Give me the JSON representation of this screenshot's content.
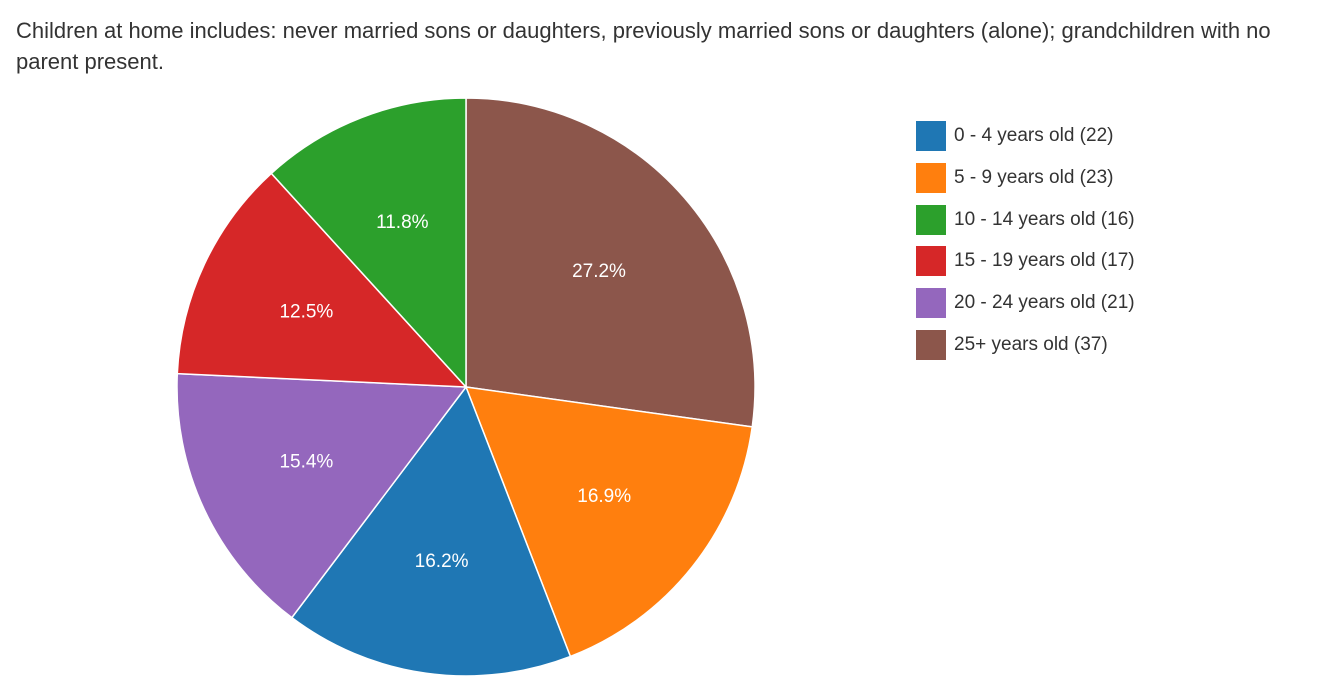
{
  "chart_data": {
    "type": "pie",
    "title": "Children at home includes: never married sons or daughters, previously married sons or daughters (alone); grandchildren with no parent present.",
    "legend_position": "right",
    "start_angle_deg": 0,
    "direction": "clockwise",
    "slices": [
      {
        "label": "25+ years old (37)",
        "value": 37,
        "percent_label": "27.2%",
        "color": "#8c564b"
      },
      {
        "label": "5 - 9 years old (23)",
        "value": 23,
        "percent_label": "16.9%",
        "color": "#ff7f0e"
      },
      {
        "label": "0 - 4 years old (22)",
        "value": 22,
        "percent_label": "16.2%",
        "color": "#1f77b4"
      },
      {
        "label": "20 - 24 years old (21)",
        "value": 21,
        "percent_label": "15.4%",
        "color": "#9467bd"
      },
      {
        "label": "15 - 19 years old (17)",
        "value": 17,
        "percent_label": "12.5%",
        "color": "#d62728"
      },
      {
        "label": "10 - 14 years old (16)",
        "value": 16,
        "percent_label": "11.8%",
        "color": "#2ca02c"
      }
    ],
    "legend": [
      {
        "label": "0 - 4 years old (22)",
        "color": "#1f77b4"
      },
      {
        "label": "5 - 9 years old (23)",
        "color": "#ff7f0e"
      },
      {
        "label": "10 - 14 years old (16)",
        "color": "#2ca02c"
      },
      {
        "label": "15 - 19 years old (17)",
        "color": "#d62728"
      },
      {
        "label": "20 - 24 years old (21)",
        "color": "#9467bd"
      },
      {
        "label": "25+ years old (37)",
        "color": "#8c564b"
      }
    ]
  }
}
